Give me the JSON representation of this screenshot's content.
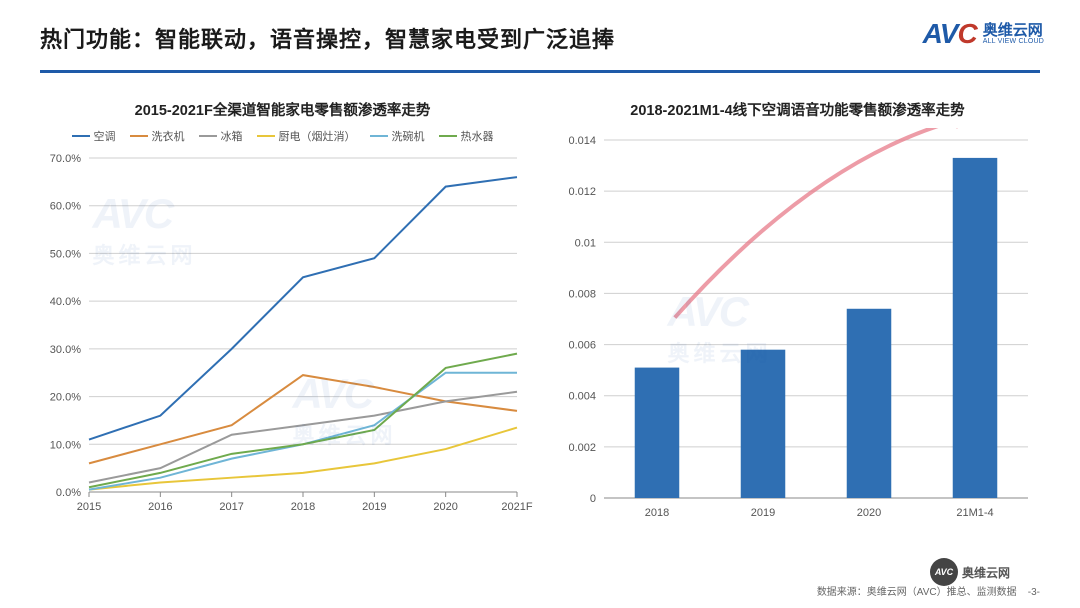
{
  "header": {
    "title": "热门功能：智能联动，语音操控，智慧家电受到广泛追捧"
  },
  "logo": {
    "mark": "AV",
    "swoosh": "C",
    "cn": "奥维云网",
    "en": "ALL VIEW CLOUD"
  },
  "left_chart": {
    "type": "line",
    "title": "2015-2021F全渠道智能家电零售额渗透率走势",
    "categories": [
      "2015",
      "2016",
      "2017",
      "2018",
      "2019",
      "2020",
      "2021F"
    ],
    "ylim": [
      0,
      70
    ],
    "ytick_step": 10,
    "ytick_suffix": ".0%",
    "grid_color": "#cfcfcf",
    "axis_fontsize": 11,
    "line_width": 2,
    "series": [
      {
        "name": "空调",
        "color": "#2f6fb3",
        "values": [
          11,
          16,
          30,
          45,
          49,
          64,
          66
        ]
      },
      {
        "name": "洗衣机",
        "color": "#d88b3f",
        "values": [
          6,
          10,
          14,
          24.5,
          22,
          19,
          17
        ]
      },
      {
        "name": "冰箱",
        "color": "#9a9a9a",
        "values": [
          2,
          5,
          12,
          14,
          16,
          19,
          21
        ]
      },
      {
        "name": "厨电（烟灶消）",
        "color": "#e8c63a",
        "values": [
          0.5,
          2,
          3,
          4,
          6,
          9,
          13.5
        ]
      },
      {
        "name": "洗碗机",
        "color": "#6fb5d6",
        "values": [
          0.5,
          3,
          7,
          10,
          14,
          25,
          25
        ]
      },
      {
        "name": "热水器",
        "color": "#6faa4d",
        "values": [
          1,
          4,
          8,
          10,
          13,
          26,
          29
        ]
      }
    ]
  },
  "right_chart": {
    "type": "bar",
    "title": "2018-2021M1-4线下空调语音功能零售额渗透率走势",
    "categories": [
      "2018",
      "2019",
      "2020",
      "21M1-4"
    ],
    "values": [
      0.0051,
      0.0058,
      0.0074,
      0.0133
    ],
    "bar_color": "#2f6fb3",
    "ylim": [
      0,
      0.014
    ],
    "ytick_step": 0.002,
    "grid_color": "#cfcfcf",
    "axis_fontsize": 11,
    "bar_width": 0.42,
    "arrow_color": "#e77b8a"
  },
  "footer": {
    "source": "数据来源：奥维云网（AVC）推总、监测数据",
    "page": "-3-",
    "badge": "奥维云网"
  },
  "watermark": {
    "mark": "AVC",
    "cn": "奥维云网"
  }
}
